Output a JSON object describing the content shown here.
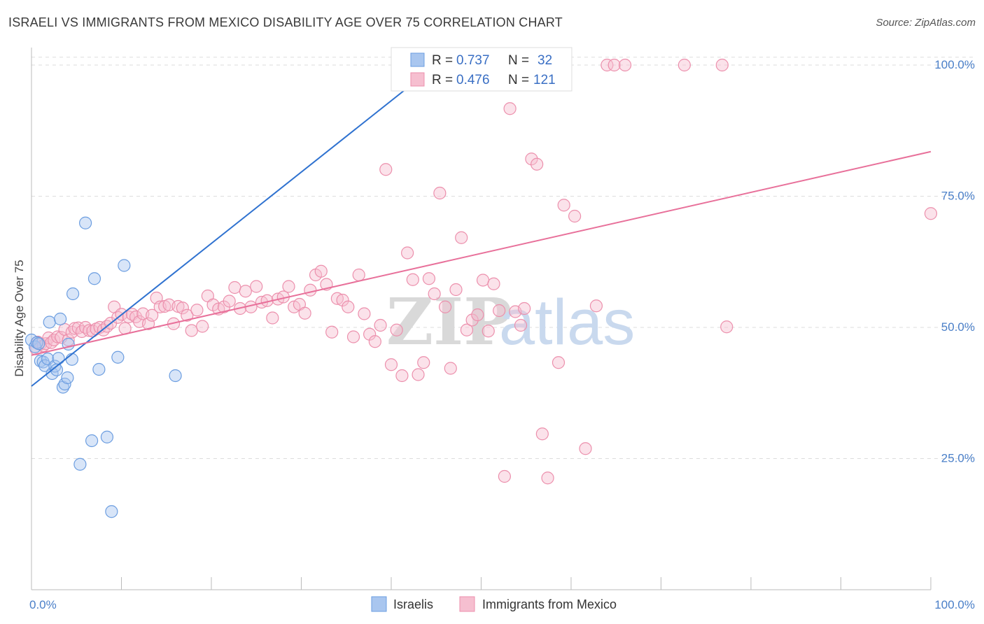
{
  "title": "ISRAELI VS IMMIGRANTS FROM MEXICO DISABILITY AGE OVER 75 CORRELATION CHART",
  "source": "Source: ZipAtlas.com",
  "watermark": {
    "zip": "ZIP",
    "atlas": "atlas"
  },
  "colors": {
    "israelis_fill": "#a9c6ef",
    "israelis_stroke": "#6b9de0",
    "israelis_line": "#2f72d0",
    "mexico_fill": "#f6bfd0",
    "mexico_stroke": "#ec8fac",
    "mexico_line": "#e8709a",
    "axis_tick_text": "#4a7fc8",
    "grid": "#dddddd"
  },
  "legend": {
    "rows": [
      {
        "r_label": "R = ",
        "r_value": "0.737",
        "n_label": "N = ",
        "n_value": "32"
      },
      {
        "r_label": "R = ",
        "r_value": "0.476",
        "n_label": "N = ",
        "n_value": "121"
      }
    ]
  },
  "bottom_legend": [
    "Israelis",
    "Immigrants from Mexico"
  ],
  "chart_data": {
    "type": "scatter",
    "ylabel": "Disability Age Over 75",
    "xlim": [
      0,
      100
    ],
    "ylim": [
      0,
      102
    ],
    "x_tick_labels": [
      "0.0%",
      "100.0%"
    ],
    "y_ticks": [
      {
        "value": 25,
        "label": "25.0%"
      },
      {
        "value": 50,
        "label": "50.0%"
      },
      {
        "value": 75,
        "label": "75.0%"
      },
      {
        "value": 100,
        "label": "100.0%"
      }
    ],
    "grid": "horizontal dashed",
    "series": [
      {
        "name": "Israelis",
        "r": 0.737,
        "n": 32,
        "trend": {
          "x0": 0,
          "y0": 38.8,
          "x1": 45.0,
          "y1": 100.0
        },
        "points": [
          [
            0.0,
            47.6
          ],
          [
            0.4,
            46.3
          ],
          [
            0.6,
            47.1
          ],
          [
            0.8,
            46.9
          ],
          [
            1.0,
            43.6
          ],
          [
            1.3,
            43.4
          ],
          [
            1.5,
            42.7
          ],
          [
            1.8,
            44.0
          ],
          [
            2.0,
            51.0
          ],
          [
            2.3,
            41.2
          ],
          [
            2.6,
            42.6
          ],
          [
            2.8,
            41.9
          ],
          [
            3.0,
            44.1
          ],
          [
            3.2,
            51.6
          ],
          [
            3.5,
            38.6
          ],
          [
            3.7,
            39.2
          ],
          [
            4.0,
            40.4
          ],
          [
            4.1,
            46.8
          ],
          [
            4.5,
            43.9
          ],
          [
            4.6,
            56.4
          ],
          [
            5.4,
            23.9
          ],
          [
            6.0,
            69.9
          ],
          [
            6.7,
            28.4
          ],
          [
            7.0,
            59.3
          ],
          [
            7.5,
            42.0
          ],
          [
            8.4,
            29.1
          ],
          [
            8.9,
            14.9
          ],
          [
            9.6,
            44.3
          ],
          [
            10.3,
            61.8
          ],
          [
            16.0,
            40.8
          ],
          [
            43.5,
            100.0
          ],
          [
            43.8,
            100.0
          ]
        ]
      },
      {
        "name": "Immigrants from Mexico",
        "r": 0.476,
        "n": 121,
        "trend": {
          "x0": 0,
          "y0": 44.7,
          "x1": 100,
          "y1": 83.5
        },
        "points": [
          [
            0.5,
            45.9
          ],
          [
            0.7,
            47.2
          ],
          [
            1.0,
            46.8
          ],
          [
            1.3,
            46.5
          ],
          [
            1.6,
            46.9
          ],
          [
            1.9,
            48.0
          ],
          [
            2.2,
            47.1
          ],
          [
            2.5,
            47.6
          ],
          [
            2.9,
            48.2
          ],
          [
            3.3,
            48.1
          ],
          [
            3.7,
            49.6
          ],
          [
            4.1,
            47.6
          ],
          [
            4.5,
            49.1
          ],
          [
            4.8,
            49.8
          ],
          [
            5.2,
            49.9
          ],
          [
            5.6,
            49.2
          ],
          [
            6.0,
            50.0
          ],
          [
            6.4,
            49.4
          ],
          [
            6.8,
            49.3
          ],
          [
            7.2,
            49.7
          ],
          [
            7.6,
            50.0
          ],
          [
            8.0,
            49.5
          ],
          [
            8.4,
            50.2
          ],
          [
            8.8,
            50.8
          ],
          [
            9.2,
            53.9
          ],
          [
            9.6,
            51.9
          ],
          [
            10.0,
            52.5
          ],
          [
            10.4,
            49.8
          ],
          [
            10.8,
            52.0
          ],
          [
            11.2,
            52.5
          ],
          [
            11.6,
            52.0
          ],
          [
            12.0,
            51.1
          ],
          [
            12.4,
            52.6
          ],
          [
            13.0,
            50.7
          ],
          [
            13.4,
            52.3
          ],
          [
            13.9,
            55.6
          ],
          [
            14.3,
            53.9
          ],
          [
            14.8,
            54.0
          ],
          [
            15.3,
            54.3
          ],
          [
            15.8,
            50.7
          ],
          [
            16.3,
            54.0
          ],
          [
            16.8,
            53.7
          ],
          [
            17.3,
            52.3
          ],
          [
            17.8,
            49.4
          ],
          [
            18.4,
            53.3
          ],
          [
            19.0,
            50.2
          ],
          [
            19.6,
            56.0
          ],
          [
            20.2,
            54.3
          ],
          [
            20.8,
            53.5
          ],
          [
            21.4,
            53.9
          ],
          [
            22.0,
            55.0
          ],
          [
            22.6,
            57.6
          ],
          [
            23.2,
            53.6
          ],
          [
            23.8,
            56.9
          ],
          [
            24.4,
            53.9
          ],
          [
            25.0,
            57.8
          ],
          [
            25.6,
            54.8
          ],
          [
            26.2,
            55.1
          ],
          [
            26.8,
            51.8
          ],
          [
            27.4,
            55.4
          ],
          [
            28.0,
            55.8
          ],
          [
            28.6,
            57.8
          ],
          [
            29.2,
            53.9
          ],
          [
            29.8,
            54.4
          ],
          [
            30.4,
            52.7
          ],
          [
            31.0,
            57.1
          ],
          [
            31.6,
            60.0
          ],
          [
            32.2,
            60.7
          ],
          [
            32.8,
            58.2
          ],
          [
            33.4,
            49.1
          ],
          [
            34.0,
            55.5
          ],
          [
            34.6,
            55.2
          ],
          [
            35.2,
            53.9
          ],
          [
            35.8,
            48.2
          ],
          [
            36.4,
            60.0
          ],
          [
            37.0,
            52.6
          ],
          [
            37.6,
            48.7
          ],
          [
            38.2,
            47.3
          ],
          [
            38.8,
            50.4
          ],
          [
            39.4,
            80.1
          ],
          [
            40.0,
            42.9
          ],
          [
            40.6,
            49.5
          ],
          [
            41.2,
            40.8
          ],
          [
            41.8,
            64.2
          ],
          [
            42.4,
            59.1
          ],
          [
            43.0,
            41.0
          ],
          [
            43.6,
            43.3
          ],
          [
            44.2,
            59.3
          ],
          [
            44.8,
            56.4
          ],
          [
            45.4,
            75.6
          ],
          [
            46.0,
            53.9
          ],
          [
            46.6,
            42.2
          ],
          [
            47.2,
            57.2
          ],
          [
            47.8,
            67.1
          ],
          [
            48.4,
            49.5
          ],
          [
            49.0,
            51.4
          ],
          [
            49.6,
            52.4
          ],
          [
            50.2,
            59.0
          ],
          [
            50.8,
            49.3
          ],
          [
            51.4,
            58.3
          ],
          [
            52.0,
            53.2
          ],
          [
            52.6,
            21.6
          ],
          [
            53.2,
            91.7
          ],
          [
            53.8,
            53.0
          ],
          [
            54.4,
            50.4
          ],
          [
            54.8,
            53.6
          ],
          [
            55.6,
            82.1
          ],
          [
            56.2,
            81.1
          ],
          [
            56.8,
            29.7
          ],
          [
            57.4,
            21.3
          ],
          [
            58.6,
            43.3
          ],
          [
            59.2,
            73.3
          ],
          [
            60.4,
            71.2
          ],
          [
            61.6,
            26.9
          ],
          [
            62.8,
            54.1
          ],
          [
            64.0,
            100.0
          ],
          [
            64.8,
            100.0
          ],
          [
            66.0,
            100.0
          ],
          [
            72.6,
            100.0
          ],
          [
            76.8,
            100.0
          ],
          [
            77.3,
            50.1
          ],
          [
            100.0,
            71.7
          ]
        ]
      }
    ]
  }
}
